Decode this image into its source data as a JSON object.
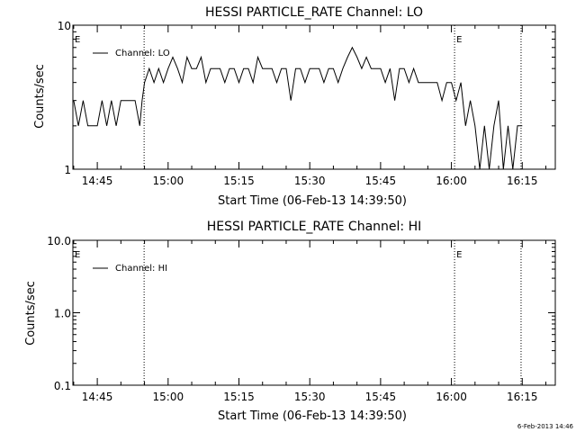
{
  "stamp": "6-Feb-2013 14:46",
  "chart_data": [
    {
      "type": "line",
      "title": "HESSI PARTICLE_RATE Channel: LO",
      "xlabel": "Start Time (06-Feb-13 14:39:50)",
      "ylabel": "Counts/sec",
      "yscale": "log",
      "ylim": [
        1,
        10
      ],
      "ytick_labels": [
        "1",
        "10"
      ],
      "xlim": [
        "14:39:50",
        "16:22:00"
      ],
      "xtick_labels": [
        "14:45",
        "15:00",
        "15:15",
        "15:30",
        "15:45",
        "16:00",
        "16:15"
      ],
      "grid": false,
      "legend_position": "top-left",
      "series": [
        {
          "name": "Channel: LO",
          "x": [
            "14:40:00",
            "14:41:00",
            "14:42:00",
            "14:43:00",
            "14:44:00",
            "14:45:00",
            "14:46:00",
            "14:47:00",
            "14:48:00",
            "14:49:00",
            "14:50:00",
            "14:51:00",
            "14:52:00",
            "14:53:00",
            "14:54:00",
            "14:54:30",
            "14:55:00",
            "14:56:00",
            "14:57:00",
            "14:58:00",
            "14:59:00",
            "15:00:00",
            "15:01:00",
            "15:02:00",
            "15:03:00",
            "15:04:00",
            "15:05:00",
            "15:06:00",
            "15:07:00",
            "15:08:00",
            "15:09:00",
            "15:10:00",
            "15:11:00",
            "15:12:00",
            "15:13:00",
            "15:14:00",
            "15:15:00",
            "15:16:00",
            "15:17:00",
            "15:18:00",
            "15:19:00",
            "15:20:00",
            "15:21:00",
            "15:22:00",
            "15:23:00",
            "15:24:00",
            "15:25:00",
            "15:26:00",
            "15:27:00",
            "15:28:00",
            "15:29:00",
            "15:30:00",
            "15:31:00",
            "15:32:00",
            "15:33:00",
            "15:34:00",
            "15:35:00",
            "15:36:00",
            "15:37:00",
            "15:38:00",
            "15:39:00",
            "15:40:00",
            "15:41:00",
            "15:42:00",
            "15:43:00",
            "15:44:00",
            "15:45:00",
            "15:46:00",
            "15:47:00",
            "15:48:00",
            "15:49:00",
            "15:50:00",
            "15:51:00",
            "15:52:00",
            "15:53:00",
            "15:54:00",
            "15:55:00",
            "15:56:00",
            "15:57:00",
            "15:58:00",
            "15:59:00",
            "16:00:00",
            "16:01:00",
            "16:02:00",
            "16:03:00",
            "16:04:00",
            "16:05:00",
            "16:06:00",
            "16:07:00",
            "16:08:00",
            "16:09:00",
            "16:10:00",
            "16:11:00",
            "16:12:00",
            "16:13:00",
            "16:14:00",
            "16:15:00"
          ],
          "values": [
            3,
            2,
            3,
            2,
            2,
            2,
            3,
            2,
            3,
            2,
            3,
            3,
            3,
            3,
            2,
            3,
            4,
            5,
            4,
            5,
            4,
            5,
            6,
            5,
            4,
            6,
            5,
            5,
            6,
            4,
            5,
            5,
            5,
            4,
            5,
            5,
            4,
            5,
            5,
            4,
            6,
            5,
            5,
            5,
            4,
            5,
            5,
            3,
            5,
            5,
            4,
            5,
            5,
            5,
            4,
            5,
            5,
            4,
            5,
            6,
            7,
            6,
            5,
            6,
            5,
            5,
            5,
            4,
            5,
            3,
            5,
            5,
            4,
            5,
            4,
            4,
            4,
            4,
            4,
            3,
            4,
            4,
            3,
            4,
            2,
            3,
            2,
            1,
            2,
            1,
            2,
            3,
            1,
            2,
            1,
            2,
            2
          ]
        }
      ],
      "annotations": [
        {
          "text": "E",
          "x": "14:39:50"
        },
        {
          "text": "E",
          "x": "16:00:40"
        }
      ],
      "vlines": [
        "14:54:55",
        "16:00:40",
        "16:14:45"
      ]
    },
    {
      "type": "line",
      "title": "HESSI PARTICLE_RATE Channel: HI",
      "xlabel": "Start Time (06-Feb-13 14:39:50)",
      "ylabel": "Counts/sec",
      "yscale": "log",
      "ylim": [
        0.1,
        10
      ],
      "ytick_labels": [
        "0.1",
        "1.0",
        "10.0"
      ],
      "xlim": [
        "14:39:50",
        "16:22:00"
      ],
      "xtick_labels": [
        "14:45",
        "15:00",
        "15:15",
        "15:30",
        "15:45",
        "16:00",
        "16:15"
      ],
      "grid": false,
      "legend_position": "top-left",
      "series": [
        {
          "name": "Channel: HI",
          "x": [],
          "values": []
        }
      ],
      "annotations": [
        {
          "text": "E",
          "x": "14:39:50"
        },
        {
          "text": "E",
          "x": "16:00:40"
        }
      ],
      "vlines": [
        "14:54:55",
        "16:00:40",
        "16:14:45"
      ]
    }
  ]
}
